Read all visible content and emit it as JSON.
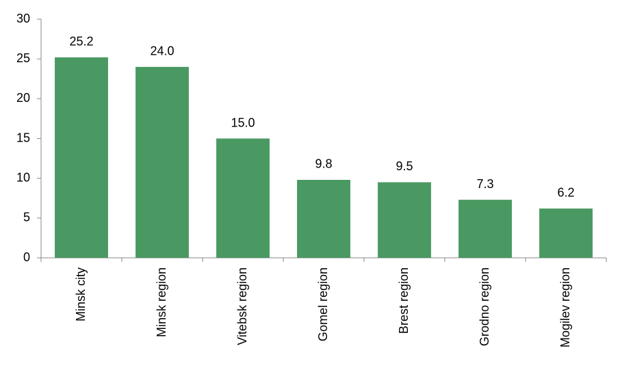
{
  "chart_data": {
    "type": "bar",
    "categories": [
      "Minsk city",
      "Minsk region",
      "Vitebsk region",
      "Gomel region",
      "Brest region",
      "Grodno region",
      "Mogilev region"
    ],
    "values": [
      25.2,
      24.0,
      15.0,
      9.8,
      9.5,
      7.3,
      6.2
    ],
    "value_labels": [
      "25.2",
      "24.0",
      "15.0",
      "9.8",
      "9.5",
      "7.3",
      "6.2"
    ],
    "color": "#4a9962",
    "ylim": [
      0,
      30
    ],
    "yticks": [
      0,
      5,
      10,
      15,
      20,
      25,
      30
    ],
    "grid": false
  }
}
